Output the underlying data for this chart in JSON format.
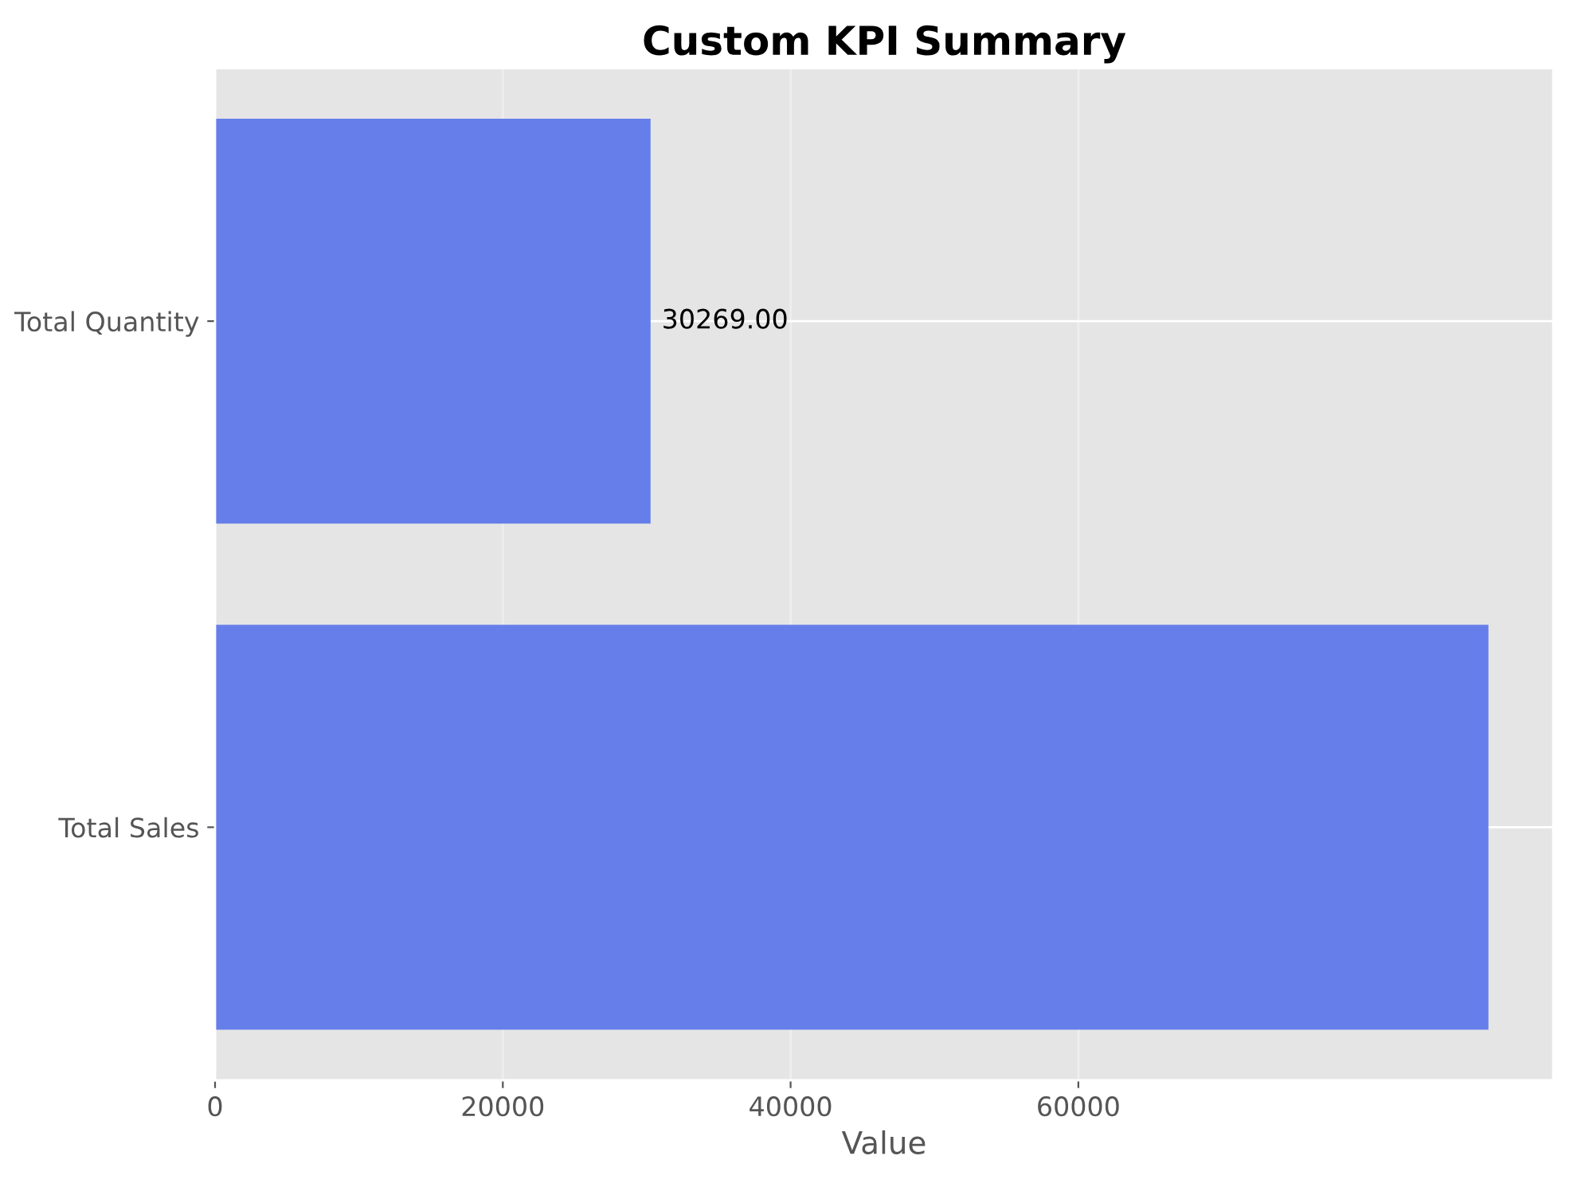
{
  "chart_data": {
    "type": "bar",
    "orientation": "horizontal",
    "title": "Custom KPI Summary",
    "xlabel": "Value",
    "categories": [
      "Total Quantity",
      "Total Sales"
    ],
    "values": [
      30269,
      88500
    ],
    "value_labels": [
      "30269.00",
      null
    ],
    "color": "#667eea",
    "xlim": [
      0,
      93000
    ],
    "xticks": [
      0,
      20000,
      40000,
      60000
    ],
    "grid": true
  }
}
